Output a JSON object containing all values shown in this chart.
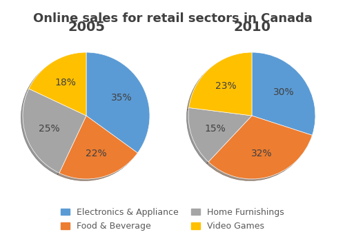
{
  "title": "Online sales for retail sectors in Canada",
  "title_fontsize": 13,
  "title_color": "#404040",
  "years": [
    "2005",
    "2010"
  ],
  "year_fontsize": 14,
  "categories": [
    "Electronics & Appliance",
    "Food & Beverage",
    "Home Furnishings",
    "Video Games"
  ],
  "colors": [
    "#5B9BD5",
    "#ED7D31",
    "#A5A5A5",
    "#FFC000"
  ],
  "shadow_color": "#C0C0C0",
  "values_2005": [
    35,
    22,
    25,
    18
  ],
  "values_2010": [
    30,
    32,
    15,
    23
  ],
  "label_fontsize": 10,
  "label_color": "#404040",
  "legend_fontsize": 9,
  "legend_text_color": "#595959"
}
